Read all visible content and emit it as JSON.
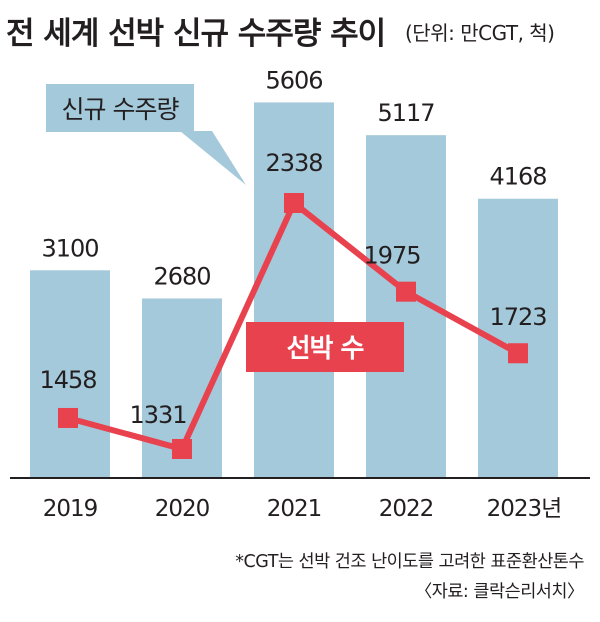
{
  "header": {
    "title": "전 세계 선박 신규 수주량 추이",
    "unit": "(단위: 만CGT, 척)"
  },
  "chart_data": {
    "type": "bar",
    "categories": [
      "2019",
      "2020",
      "2021",
      "2022",
      "2023년"
    ],
    "series": [
      {
        "name": "신규 수주량",
        "type": "bar",
        "values": [
          3100,
          2680,
          5606,
          5117,
          4168
        ]
      },
      {
        "name": "선박 수",
        "type": "line",
        "values": [
          1458,
          1331,
          2338,
          1975,
          1723
        ]
      }
    ],
    "legend": {
      "bar_label": "신규 수주량",
      "line_label": "선박 수"
    },
    "colors": {
      "bar": "#a4c9da",
      "line": "#e8424f",
      "legend_bar_bg": "#a4c9da",
      "legend_line_bg": "#e8424f"
    }
  },
  "footer": {
    "note": "*CGT는 선박 건조 난이도를 고려한 표준환산톤수",
    "source": "〈자료: 클락슨리서치〉"
  }
}
